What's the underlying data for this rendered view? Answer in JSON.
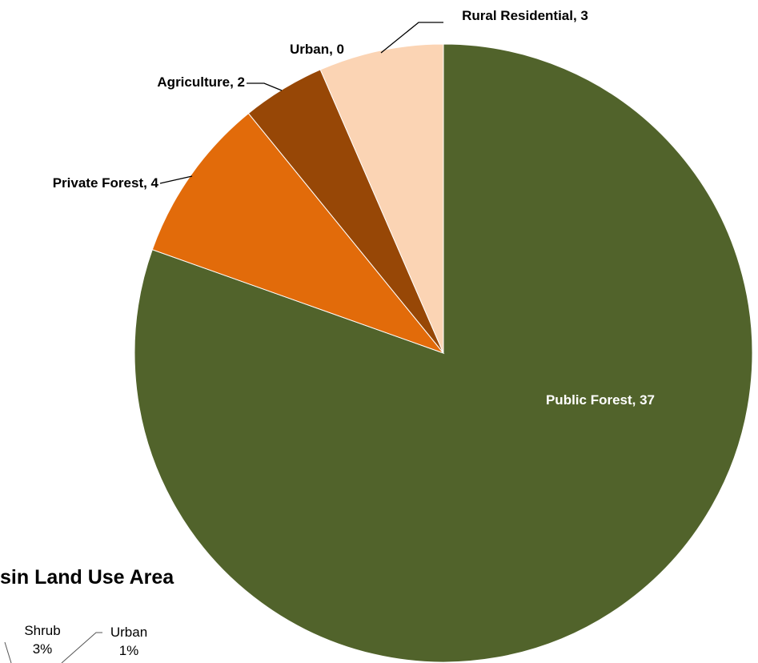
{
  "chart_data": {
    "type": "pie",
    "title": "",
    "slices": [
      {
        "label": "Public  Forest",
        "value": 37,
        "color": "#51632b",
        "label_text": "Public  Forest, 37"
      },
      {
        "label": "Private Forest",
        "value": 4,
        "color": "#e26b0a",
        "label_text": "Private Forest, 4"
      },
      {
        "label": "Agriculture",
        "value": 2,
        "color": "#974706",
        "label_text": "Agriculture, 2"
      },
      {
        "label": "Urban",
        "value": 0,
        "color": "#fbd4b4",
        "label_text": "Urban, 0"
      },
      {
        "label": "Rural Residential",
        "value": 3,
        "color": "#fbd4b4",
        "label_text": "Rural Residential, 3"
      }
    ]
  },
  "secondary_chart": {
    "title": "sin Land Use Area",
    "labels": [
      {
        "name": "Shrub",
        "pct": "3%"
      },
      {
        "name": "Urban",
        "pct": "1%"
      }
    ]
  }
}
